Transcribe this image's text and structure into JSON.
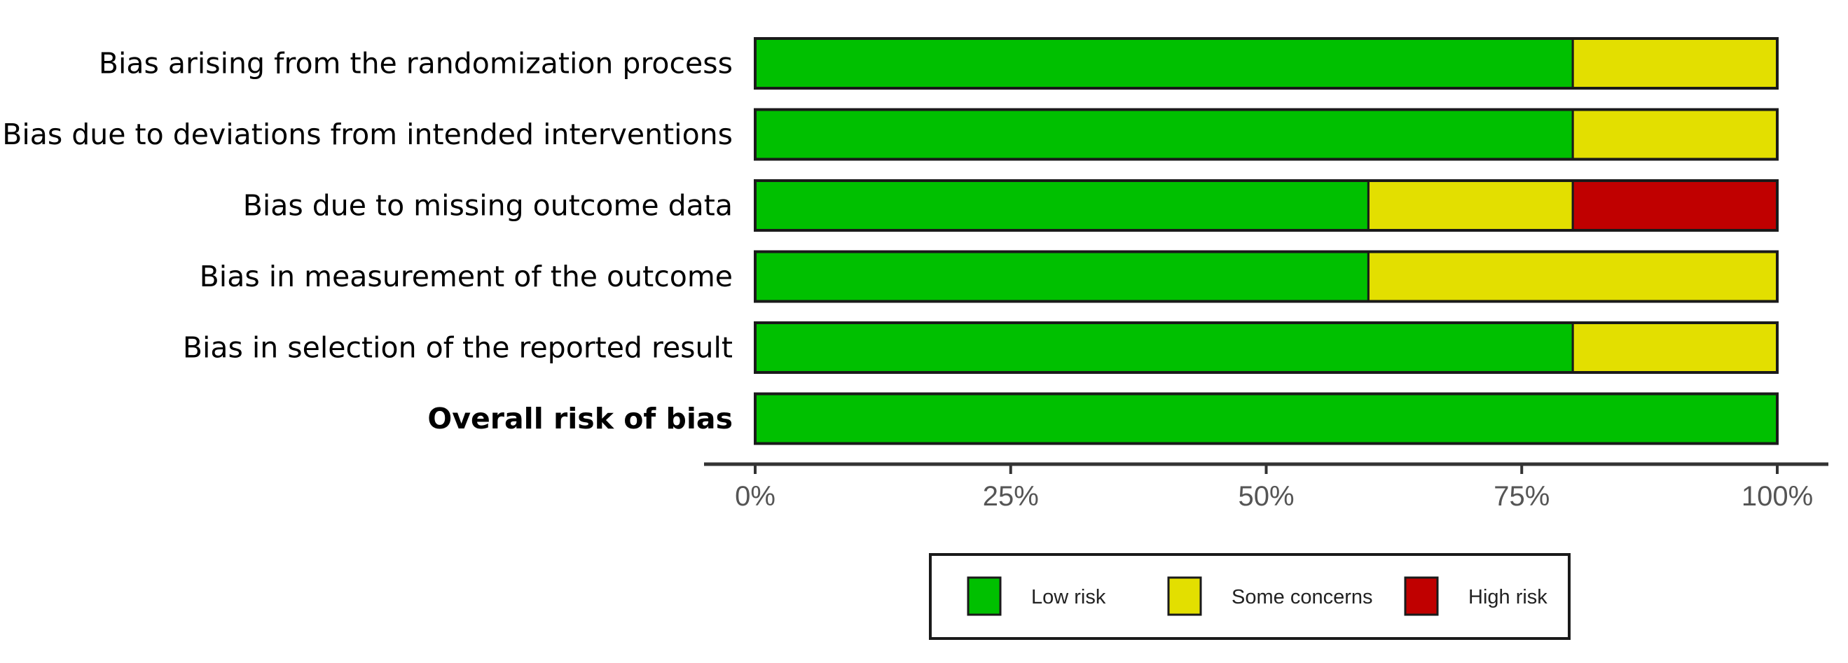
{
  "chart_data": {
    "type": "bar",
    "orientation": "horizontal",
    "stacked": true,
    "percent": true,
    "title": "",
    "xlabel": "",
    "ylabel": "",
    "xlim": [
      0,
      100
    ],
    "grid": false,
    "legend_position": "bottom",
    "categories": [
      "Bias arising from the randomization process",
      "Bias due to deviations from intended interventions",
      "Bias due to missing outcome data",
      "Bias in measurement of the outcome",
      "Bias in selection of the reported result",
      "Overall risk of bias"
    ],
    "bold_categories": [
      "Overall risk of bias"
    ],
    "series": [
      {
        "name": "Low risk",
        "color": "#00c000",
        "values": [
          80,
          80,
          60,
          60,
          80,
          100
        ]
      },
      {
        "name": "Some concerns",
        "color": "#e3df00",
        "values": [
          20,
          20,
          20,
          40,
          20,
          0
        ]
      },
      {
        "name": "High risk",
        "color": "#c00000",
        "values": [
          0,
          0,
          20,
          0,
          0,
          0
        ]
      }
    ],
    "x_ticks": [
      0,
      25,
      50,
      75,
      100
    ],
    "x_tick_labels": [
      "0%",
      "25%",
      "50%",
      "75%",
      "100%"
    ]
  }
}
